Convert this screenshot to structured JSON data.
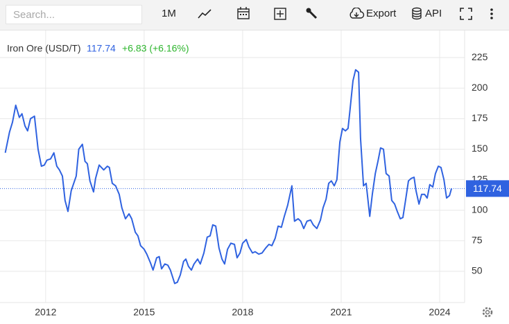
{
  "toolbar": {
    "search": "Search...",
    "range": "1M",
    "export": "Export",
    "api": "API"
  },
  "chart_data": {
    "type": "line",
    "title": "Iron Ore (USD/T)",
    "change": "+6.83 (+6.16%)",
    "xlim": [
      2010.61,
      2024.76
    ],
    "xticks": [
      2012,
      2015,
      2018,
      2021,
      2024
    ],
    "ylim": [
      24.4,
      247.2
    ],
    "yticks": [
      50,
      75,
      100,
      125,
      150,
      175,
      200,
      225
    ],
    "grid": true,
    "series": [
      {
        "name": "Iron Ore (USD/T)",
        "color": "#2f62e0",
        "x": [
          2010.77,
          2010.9,
          2010.99,
          2011.09,
          2011.2,
          2011.28,
          2011.37,
          2011.45,
          2011.54,
          2011.66,
          2011.77,
          2011.87,
          2011.96,
          2012.04,
          2012.15,
          2012.25,
          2012.34,
          2012.42,
          2012.51,
          2012.59,
          2012.68,
          2012.78,
          2012.93,
          2013.01,
          2013.12,
          2013.2,
          2013.27,
          2013.35,
          2013.46,
          2013.52,
          2013.63,
          2013.77,
          2013.88,
          2013.94,
          2014.03,
          2014.13,
          2014.24,
          2014.32,
          2014.43,
          2014.54,
          2014.62,
          2014.73,
          2014.81,
          2014.89,
          2015.0,
          2015.08,
          2015.19,
          2015.27,
          2015.38,
          2015.46,
          2015.53,
          2015.63,
          2015.72,
          2015.8,
          2015.93,
          2016.01,
          2016.1,
          2016.2,
          2016.27,
          2016.35,
          2016.44,
          2016.52,
          2016.63,
          2016.71,
          2016.82,
          2016.92,
          2017.01,
          2017.09,
          2017.18,
          2017.28,
          2017.37,
          2017.45,
          2017.54,
          2017.64,
          2017.75,
          2017.83,
          2017.92,
          2018.0,
          2018.11,
          2018.19,
          2018.3,
          2018.38,
          2018.49,
          2018.59,
          2018.7,
          2018.8,
          2018.89,
          2018.99,
          2019.08,
          2019.18,
          2019.27,
          2019.37,
          2019.5,
          2019.58,
          2019.69,
          2019.77,
          2019.86,
          2019.96,
          2020.07,
          2020.15,
          2020.26,
          2020.37,
          2020.45,
          2020.54,
          2020.62,
          2020.7,
          2020.79,
          2020.87,
          2020.96,
          2021.04,
          2021.13,
          2021.21,
          2021.27,
          2021.36,
          2021.44,
          2021.53,
          2021.59,
          2021.68,
          2021.76,
          2021.87,
          2021.95,
          2022.04,
          2022.12,
          2022.2,
          2022.29,
          2022.37,
          2022.46,
          2022.54,
          2022.63,
          2022.71,
          2022.8,
          2022.88,
          2022.96,
          2023.05,
          2023.13,
          2023.22,
          2023.28,
          2023.37,
          2023.45,
          2023.54,
          2023.62,
          2023.7,
          2023.79,
          2023.87,
          2023.96,
          2024.04,
          2024.13,
          2024.21,
          2024.3,
          2024.36
        ],
        "values": [
          147,
          164,
          172,
          186,
          176,
          179,
          169,
          165,
          175,
          177,
          150,
          136,
          137,
          141,
          142,
          147,
          136,
          133,
          128,
          108,
          99,
          116,
          128,
          150,
          154,
          140,
          138,
          124,
          115,
          126,
          137,
          133,
          136,
          135,
          122,
          120,
          113,
          102,
          93,
          97,
          93,
          82,
          79,
          71,
          68,
          64,
          57,
          51,
          61,
          62,
          52,
          56,
          55,
          51,
          40,
          41,
          47,
          58,
          60,
          54,
          51,
          56,
          60,
          56,
          65,
          78,
          79,
          88,
          87,
          69,
          60,
          56,
          68,
          73,
          72,
          61,
          65,
          73,
          76,
          70,
          65,
          66,
          64,
          65,
          69,
          72,
          71,
          77,
          87,
          86,
          95,
          104,
          120,
          91,
          93,
          91,
          85,
          91,
          92,
          88,
          85,
          92,
          102,
          109,
          122,
          124,
          120,
          125,
          156,
          167,
          165,
          167,
          182,
          206,
          215,
          213,
          159,
          120,
          122,
          95,
          113,
          130,
          140,
          151,
          150,
          130,
          128,
          108,
          105,
          99,
          93,
          94,
          108,
          124,
          126,
          127,
          116,
          105,
          113,
          113,
          110,
          121,
          119,
          130,
          136,
          135,
          125,
          110,
          112,
          117.74
        ]
      }
    ]
  }
}
